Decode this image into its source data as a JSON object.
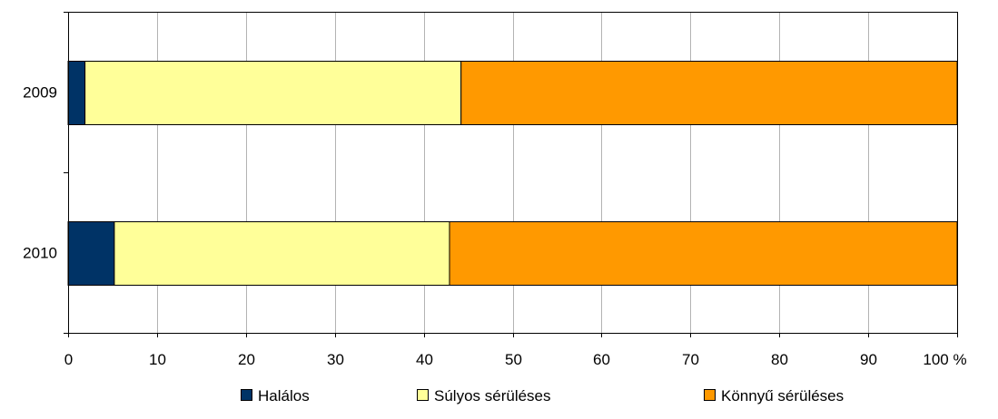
{
  "chart_data": {
    "type": "bar",
    "orientation": "horizontal",
    "stacked": true,
    "categories": [
      "2009",
      "2010"
    ],
    "series": [
      {
        "name": "Halálos",
        "values": [
          1.9,
          5.2
        ],
        "color": "#003366"
      },
      {
        "name": "Súlyos sérüléses",
        "values": [
          42.3,
          37.7
        ],
        "color": "#FFFF99"
      },
      {
        "name": "Könnyű sérüléses",
        "values": [
          55.8,
          57.1
        ],
        "color": "#FF9900"
      }
    ],
    "xlim": [
      0,
      100
    ],
    "x_ticks": [
      "0",
      "10",
      "20",
      "30",
      "40",
      "50",
      "60",
      "70",
      "80",
      "90",
      "100 %"
    ],
    "grid": true,
    "legend_position": "bottom"
  }
}
